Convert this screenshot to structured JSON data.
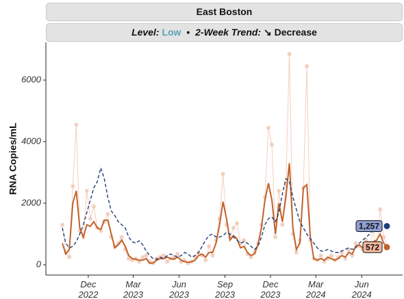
{
  "chart_data": {
    "type": "line",
    "title": "East Boston",
    "subtitle": {
      "level_label": "Level:",
      "level": "Low",
      "separator": "•",
      "trend_label": "2-Week Trend:",
      "trend": "↘ Decrease"
    },
    "y_label": "RNA Copies/mL",
    "x": [
      "2022-10-10",
      "2022-10-17",
      "2022-10-24",
      "2022-10-31",
      "2022-11-07",
      "2022-11-14",
      "2022-11-21",
      "2022-11-28",
      "2022-12-05",
      "2022-12-12",
      "2022-12-19",
      "2022-12-26",
      "2023-01-02",
      "2023-01-09",
      "2023-01-16",
      "2023-01-23",
      "2023-01-30",
      "2023-02-06",
      "2023-02-13",
      "2023-02-20",
      "2023-02-27",
      "2023-03-06",
      "2023-03-13",
      "2023-03-20",
      "2023-03-27",
      "2023-04-03",
      "2023-04-10",
      "2023-04-17",
      "2023-04-24",
      "2023-05-01",
      "2023-05-08",
      "2023-05-15",
      "2023-05-22",
      "2023-05-29",
      "2023-06-05",
      "2023-06-12",
      "2023-06-19",
      "2023-06-26",
      "2023-07-03",
      "2023-07-10",
      "2023-07-17",
      "2023-07-24",
      "2023-07-31",
      "2023-08-07",
      "2023-08-14",
      "2023-08-21",
      "2023-08-28",
      "2023-09-04",
      "2023-09-11",
      "2023-09-18",
      "2023-09-25",
      "2023-10-02",
      "2023-10-09",
      "2023-10-16",
      "2023-10-23",
      "2023-10-30",
      "2023-11-06",
      "2023-11-13",
      "2023-11-20",
      "2023-11-27",
      "2023-12-04",
      "2023-12-11",
      "2023-12-18",
      "2023-12-25",
      "2024-01-01",
      "2024-01-08",
      "2024-01-15",
      "2024-01-22",
      "2024-01-29",
      "2024-02-05",
      "2024-02-12",
      "2024-02-19",
      "2024-02-26",
      "2024-03-04",
      "2024-03-11",
      "2024-03-18",
      "2024-03-25",
      "2024-04-01",
      "2024-04-08",
      "2024-04-15",
      "2024-04-22",
      "2024-04-29",
      "2024-05-06",
      "2024-05-13",
      "2024-05-20",
      "2024-05-27",
      "2024-06-03",
      "2024-06-10",
      "2024-06-17",
      "2024-06-24",
      "2024-07-01",
      "2024-07-08",
      "2024-07-15",
      "2024-07-22"
    ],
    "series": [
      {
        "name": "Samples",
        "style": "points",
        "color": "#f0c3ae",
        "values": [
          1300,
          400,
          250,
          2550,
          4550,
          1100,
          900,
          2400,
          1500,
          1900,
          1200,
          1100,
          1400,
          1650,
          900,
          600,
          700,
          900,
          500,
          200,
          150,
          200,
          100,
          250,
          300,
          100,
          50,
          200,
          250,
          300,
          100,
          200,
          250,
          350,
          100,
          150,
          50,
          100,
          250,
          400,
          300,
          150,
          600,
          300,
          800,
          1500,
          2950,
          1300,
          900,
          1200,
          1350,
          700,
          800,
          350,
          250,
          400,
          700,
          1300,
          2200,
          4450,
          3900,
          900,
          2400,
          1300,
          2600,
          6850,
          1000,
          400,
          800,
          2500,
          6450,
          800,
          200,
          150,
          300,
          100,
          200,
          300,
          150,
          250,
          400,
          200,
          500,
          300,
          700,
          600,
          500,
          800,
          600,
          1100,
          500,
          1800,
          900,
          600
        ]
      },
      {
        "name": "Trend",
        "style": "solid",
        "color": "#c0622b",
        "values": [
          700,
          350,
          500,
          2000,
          2400,
          1200,
          900,
          1300,
          1250,
          1400,
          1200,
          1150,
          1450,
          1450,
          1000,
          550,
          650,
          800,
          600,
          300,
          200,
          180,
          150,
          150,
          200,
          50,
          60,
          150,
          200,
          200,
          250,
          200,
          180,
          250,
          150,
          100,
          80,
          100,
          150,
          300,
          350,
          250,
          400,
          400,
          700,
          1300,
          2050,
          1500,
          800,
          950,
          850,
          550,
          600,
          400,
          300,
          350,
          650,
          1200,
          2100,
          2650,
          2100,
          1000,
          2000,
          1400,
          2200,
          3300,
          1200,
          500,
          700,
          2500,
          2600,
          900,
          200,
          150,
          200,
          150,
          250,
          200,
          150,
          200,
          300,
          250,
          400,
          350,
          600,
          650,
          550,
          600,
          650,
          750,
          800,
          1000,
          700,
          572
        ]
      },
      {
        "name": "Regional",
        "style": "dashed",
        "color": "#1f3e7a",
        "end_label": "1,257",
        "values": [
          1200,
          700,
          550,
          600,
          750,
          1000,
          1300,
          1700,
          2100,
          2500,
          2700,
          3150,
          2800,
          2200,
          1750,
          1600,
          1400,
          1300,
          1200,
          900,
          750,
          700,
          780,
          650,
          450,
          300,
          200,
          180,
          250,
          200,
          300,
          350,
          300,
          250,
          300,
          400,
          350,
          250,
          300,
          400,
          600,
          800,
          950,
          1000,
          900,
          900,
          950,
          1050,
          1000,
          900,
          800,
          700,
          750,
          700,
          600,
          500,
          600,
          900,
          1300,
          1500,
          1550,
          1400,
          1700,
          2300,
          2800,
          2700,
          2200,
          1800,
          1400,
          1200,
          1000,
          850,
          700,
          550,
          450,
          450,
          500,
          450,
          400,
          400,
          450,
          500,
          550,
          500,
          550,
          700,
          800,
          900,
          1000,
          1150,
          1200,
          1257,
          null,
          null
        ]
      }
    ],
    "xlim": [
      "2022-09-07",
      "2024-08-22"
    ],
    "xticks": [
      {
        "value": "2022-12-01",
        "label": "Dec 2022"
      },
      {
        "value": "2023-03-01",
        "label": "Mar 2023"
      },
      {
        "value": "2023-06-01",
        "label": "Jun 2023"
      },
      {
        "value": "2023-09-01",
        "label": "Sep 2023"
      },
      {
        "value": "2023-12-01",
        "label": "Dec 2023"
      },
      {
        "value": "2024-03-01",
        "label": "Mar 2024"
      },
      {
        "value": "2024-06-01",
        "label": "Jun 2024"
      }
    ],
    "ylim": [
      -333,
      7222
    ],
    "yticks": [
      0,
      2000,
      4000,
      6000
    ],
    "grid": false
  }
}
